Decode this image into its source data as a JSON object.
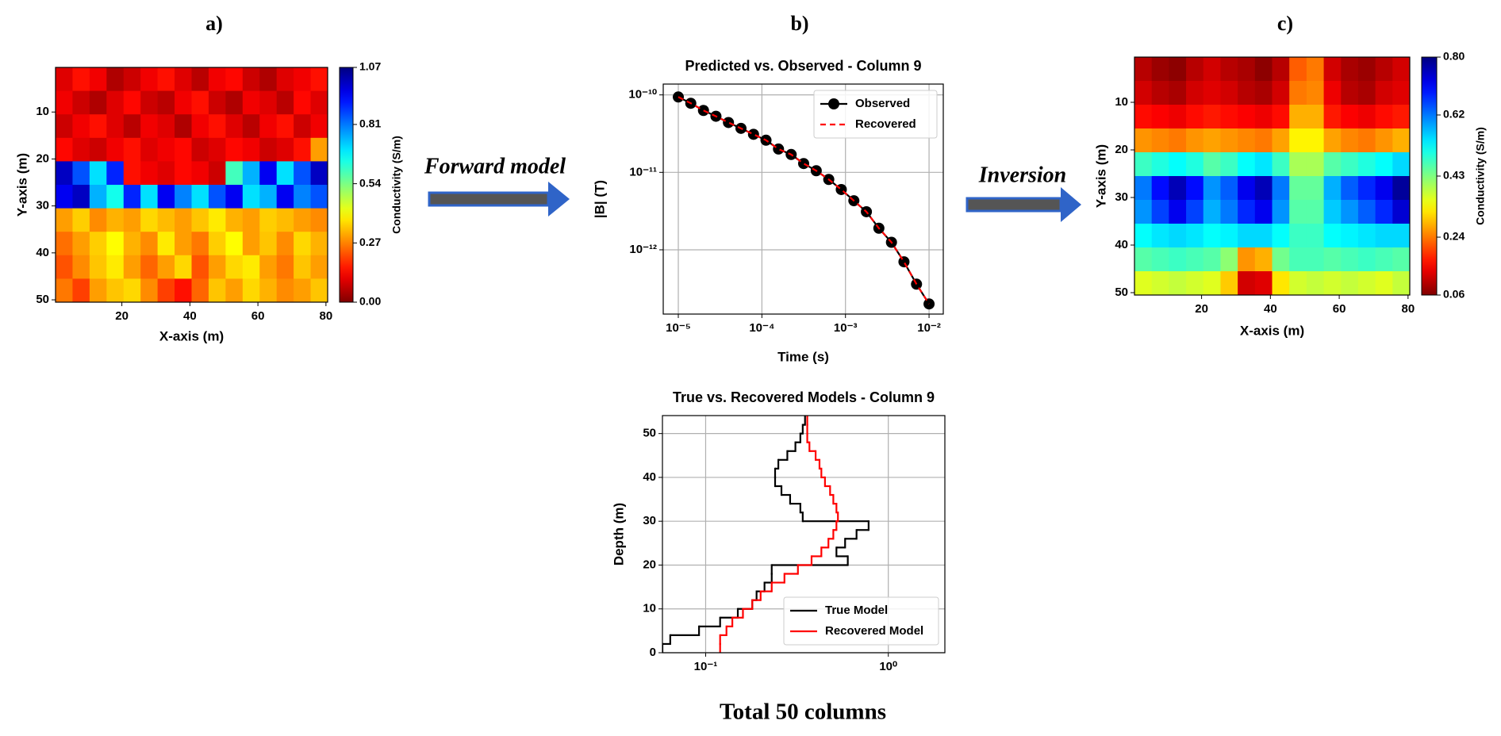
{
  "chart_data": [
    {
      "type": "heatmap",
      "panel": "a)",
      "xlabel": "X-axis (m)",
      "ylabel": "Y-axis (m)",
      "xlim": [
        0.5,
        80.5
      ],
      "ylim": [
        0.5,
        50.5
      ],
      "y_inverted": true,
      "xticks": [
        20,
        40,
        60,
        80
      ],
      "yticks": [
        10,
        20,
        30,
        40,
        50
      ],
      "colorbar": {
        "label": "Conductivity (S/m)",
        "lim": [
          0,
          1.07
        ],
        "colormap": "jet_r",
        "ticks": [
          {
            "value": 0,
            "label": "0.00"
          },
          0.27,
          0.54,
          0.81,
          1.07
        ]
      },
      "z": [
        [
          0.1,
          0.15,
          0.12,
          0.05,
          0.08,
          0.12,
          0.15,
          0.1,
          0.06,
          0.12,
          0.14,
          0.08,
          0.05,
          0.1,
          0.12,
          0.15
        ],
        [
          0.12,
          0.08,
          0.05,
          0.1,
          0.14,
          0.08,
          0.06,
          0.12,
          0.15,
          0.08,
          0.05,
          0.12,
          0.1,
          0.06,
          0.14,
          0.1
        ],
        [
          0.08,
          0.12,
          0.15,
          0.1,
          0.06,
          0.12,
          0.1,
          0.05,
          0.12,
          0.15,
          0.1,
          0.06,
          0.12,
          0.15,
          0.08,
          0.12
        ],
        [
          0.14,
          0.1,
          0.08,
          0.12,
          0.15,
          0.1,
          0.12,
          0.14,
          0.08,
          0.1,
          0.14,
          0.12,
          0.08,
          0.1,
          0.15,
          0.3
        ],
        [
          1.0,
          0.85,
          0.7,
          0.9,
          0.15,
          0.12,
          0.1,
          0.14,
          0.12,
          0.08,
          0.6,
          0.75,
          0.95,
          0.7,
          0.85,
          1.0
        ],
        [
          0.95,
          1.0,
          0.75,
          0.65,
          0.9,
          0.7,
          0.95,
          0.8,
          0.7,
          0.85,
          0.95,
          0.7,
          0.75,
          0.95,
          0.8,
          0.85
        ],
        [
          0.3,
          0.35,
          0.28,
          0.32,
          0.3,
          0.36,
          0.33,
          0.3,
          0.34,
          0.38,
          0.32,
          0.3,
          0.35,
          0.33,
          0.3,
          0.28
        ],
        [
          0.25,
          0.3,
          0.35,
          0.4,
          0.32,
          0.28,
          0.38,
          0.3,
          0.26,
          0.35,
          0.4,
          0.3,
          0.34,
          0.28,
          0.36,
          0.32
        ],
        [
          0.22,
          0.28,
          0.34,
          0.38,
          0.3,
          0.24,
          0.3,
          0.36,
          0.22,
          0.3,
          0.36,
          0.38,
          0.3,
          0.26,
          0.34,
          0.3
        ],
        [
          0.26,
          0.2,
          0.3,
          0.34,
          0.36,
          0.28,
          0.2,
          0.15,
          0.24,
          0.34,
          0.3,
          0.36,
          0.32,
          0.28,
          0.3,
          0.34
        ]
      ]
    },
    {
      "type": "line",
      "panel": "b)",
      "title": "Predicted vs. Observed - Column 9",
      "xlabel": "Time (s)",
      "ylabel": "|B| (T)",
      "xscale": "log",
      "yscale": "log",
      "grid": true,
      "legend": "upper right",
      "xlim": [
        6.6e-06,
        0.0148
      ],
      "ylim": [
        1.48e-13,
        1.38e-10
      ],
      "xticks": [
        {
          "value": 1e-05,
          "label": "10⁻⁵"
        },
        {
          "value": 0.0001,
          "label": "10⁻⁴"
        },
        {
          "value": 0.001,
          "label": "10⁻³"
        },
        {
          "value": 0.01,
          "label": "10⁻²"
        }
      ],
      "yticks": [
        {
          "value": 1e-12,
          "label": "10⁻¹²"
        },
        {
          "value": 1e-11,
          "label": "10⁻¹¹"
        },
        {
          "value": 1e-10,
          "label": "10⁻¹⁰"
        }
      ],
      "x": [
        1e-05,
        1.41e-05,
        2e-05,
        2.82e-05,
        3.98e-05,
        5.62e-05,
        7.94e-05,
        0.000112,
        0.000158,
        0.000224,
        0.000316,
        0.000447,
        0.000631,
        0.000891,
        0.00126,
        0.00178,
        0.00251,
        0.00355,
        0.00501,
        0.00708,
        0.01
      ],
      "series": [
        {
          "name": "Observed",
          "color": "#000000",
          "marker": "o",
          "linestyle": "-",
          "values": [
            9.4e-11,
            7.8e-11,
            6.3e-11,
            5.3e-11,
            4.4e-11,
            3.7e-11,
            3.1e-11,
            2.6e-11,
            2e-11,
            1.7e-11,
            1.3e-11,
            1.05e-11,
            8.1e-12,
            6e-12,
            4.3e-12,
            3.1e-12,
            1.9e-12,
            1.25e-12,
            7e-13,
            3.6e-13,
            2e-13
          ]
        },
        {
          "name": "Recovered",
          "color": "#ff0000",
          "linestyle": "--",
          "values": [
            9.4e-11,
            7.8e-11,
            6.3e-11,
            5.3e-11,
            4.4e-11,
            3.7e-11,
            3.1e-11,
            2.6e-11,
            2e-11,
            1.7e-11,
            1.3e-11,
            1.05e-11,
            8.1e-12,
            6e-12,
            4.3e-12,
            3.1e-12,
            1.9e-12,
            1.25e-12,
            7e-13,
            3.6e-13,
            2e-13
          ]
        }
      ]
    },
    {
      "type": "step",
      "title": "True vs. Recovered Models - Column 9",
      "ylabel": "Depth (m)",
      "xscale": "log",
      "grid": true,
      "legend": "lower right",
      "xlim": [
        0.058,
        2.04
      ],
      "ylim": [
        0,
        54.1
      ],
      "xticks": [
        {
          "value": 0.1,
          "label": "10⁻¹"
        },
        {
          "value": 1,
          "label": "10⁰"
        }
      ],
      "yticks": [
        0,
        10,
        20,
        30,
        40,
        50
      ],
      "y": [
        0,
        2,
        4,
        6,
        8,
        10,
        12,
        14,
        16,
        18,
        20,
        22,
        24,
        26,
        28,
        30,
        32,
        34,
        36,
        38,
        40,
        42,
        44,
        46,
        48,
        50,
        52
      ],
      "series": [
        {
          "name": "True Model",
          "color": "#000000",
          "linestyle": "-",
          "values": [
            0.058,
            0.064,
            0.092,
            0.12,
            0.15,
            0.18,
            0.19,
            0.21,
            0.23,
            0.23,
            0.6,
            0.52,
            0.58,
            0.67,
            0.78,
            0.34,
            0.33,
            0.29,
            0.26,
            0.24,
            0.24,
            0.25,
            0.28,
            0.31,
            0.33,
            0.34,
            0.35
          ]
        },
        {
          "name": "Recovered Model",
          "color": "#ff0000",
          "linestyle": "-",
          "values": [
            0.12,
            0.12,
            0.13,
            0.14,
            0.16,
            0.18,
            0.2,
            0.23,
            0.27,
            0.32,
            0.38,
            0.43,
            0.47,
            0.5,
            0.52,
            0.53,
            0.52,
            0.5,
            0.48,
            0.45,
            0.43,
            0.42,
            0.4,
            0.37,
            0.36,
            0.36,
            0.36
          ]
        }
      ]
    },
    {
      "type": "heatmap",
      "panel": "c)",
      "xlabel": "X-axis (m)",
      "ylabel": "Y-axis (m)",
      "xlim": [
        0.5,
        80.5
      ],
      "ylim": [
        0.5,
        50.5
      ],
      "y_inverted": true,
      "xticks": [
        20,
        40,
        60,
        80
      ],
      "yticks": [
        10,
        20,
        30,
        40,
        50
      ],
      "colorbar": {
        "label": "Conductivity (S/m)",
        "lim": [
          0.06,
          0.8
        ],
        "colormap": "jet_r",
        "ticks": [
          0.06,
          0.24,
          0.43,
          0.62,
          {
            "value": 0.8,
            "label": "0.80"
          }
        ]
      },
      "z": [
        [
          0.1,
          0.08,
          0.07,
          0.1,
          0.12,
          0.1,
          0.09,
          0.07,
          0.1,
          0.22,
          0.24,
          0.12,
          0.09,
          0.08,
          0.1,
          0.12
        ],
        [
          0.12,
          0.1,
          0.09,
          0.12,
          0.13,
          0.12,
          0.1,
          0.09,
          0.12,
          0.24,
          0.25,
          0.14,
          0.1,
          0.09,
          0.12,
          0.13
        ],
        [
          0.16,
          0.15,
          0.14,
          0.16,
          0.17,
          0.16,
          0.15,
          0.14,
          0.16,
          0.28,
          0.28,
          0.17,
          0.15,
          0.14,
          0.16,
          0.17
        ],
        [
          0.26,
          0.25,
          0.24,
          0.26,
          0.27,
          0.26,
          0.25,
          0.24,
          0.27,
          0.33,
          0.33,
          0.27,
          0.25,
          0.24,
          0.26,
          0.28
        ],
        [
          0.48,
          0.5,
          0.52,
          0.5,
          0.46,
          0.48,
          0.52,
          0.54,
          0.48,
          0.4,
          0.4,
          0.46,
          0.48,
          0.5,
          0.52,
          0.55
        ],
        [
          0.62,
          0.7,
          0.76,
          0.7,
          0.6,
          0.64,
          0.72,
          0.76,
          0.62,
          0.45,
          0.45,
          0.58,
          0.64,
          0.68,
          0.72,
          0.78
        ],
        [
          0.6,
          0.66,
          0.72,
          0.66,
          0.58,
          0.62,
          0.68,
          0.72,
          0.6,
          0.46,
          0.46,
          0.56,
          0.6,
          0.64,
          0.68,
          0.74
        ],
        [
          0.52,
          0.54,
          0.55,
          0.54,
          0.52,
          0.53,
          0.55,
          0.55,
          0.52,
          0.48,
          0.48,
          0.52,
          0.53,
          0.54,
          0.55,
          0.55
        ],
        [
          0.46,
          0.47,
          0.48,
          0.47,
          0.46,
          0.42,
          0.26,
          0.28,
          0.44,
          0.47,
          0.47,
          0.46,
          0.47,
          0.48,
          0.47,
          0.46
        ],
        [
          0.36,
          0.37,
          0.38,
          0.37,
          0.36,
          0.3,
          0.12,
          0.13,
          0.32,
          0.37,
          0.38,
          0.37,
          0.38,
          0.37,
          0.36,
          0.38
        ]
      ]
    }
  ],
  "annotations": {
    "forward": "Forward model",
    "inversion": "Inversion"
  },
  "footer": "Total 50 columns"
}
